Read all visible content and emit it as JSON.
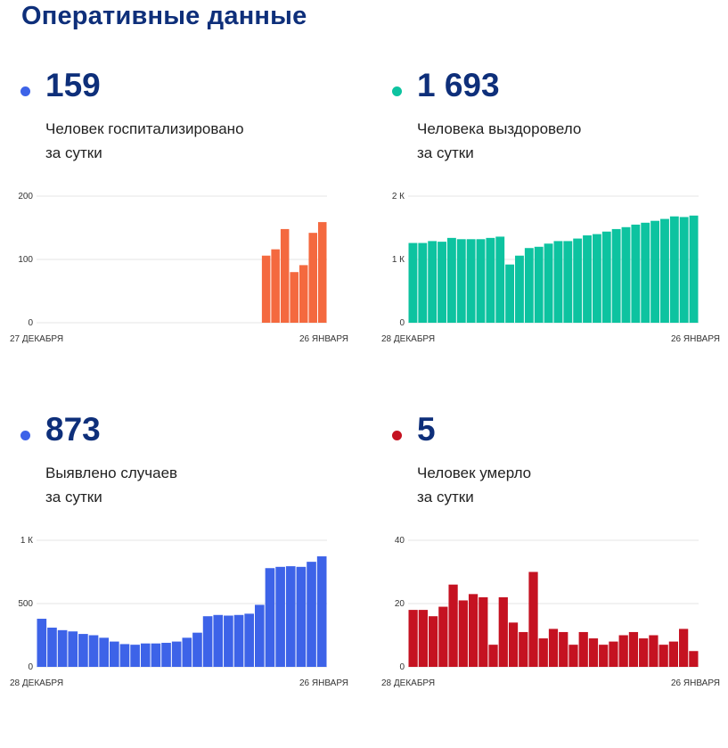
{
  "page_title": "Оперативные данные",
  "colors": {
    "title": "#0e2f7a",
    "hospitalized": "#f4693f",
    "recovered": "#0dc3a0",
    "cases": "#3d63e8",
    "deaths": "#c51221",
    "grid": "#e6e6e6"
  },
  "panels": {
    "hospitalized": {
      "number": "159",
      "line1": "Человек госпитализировано",
      "line2": "за сутки"
    },
    "recovered": {
      "number": "1 693",
      "line1": "Человека выздоровело",
      "line2": "за сутки"
    },
    "cases": {
      "number": "873",
      "line1": "Выявлено случаев",
      "line2": "за сутки"
    },
    "deaths": {
      "number": "5",
      "line1": "Человек умерло",
      "line2": "за сутки"
    }
  },
  "chart_data": [
    {
      "type": "bar",
      "id": "hospitalized",
      "x_start_label": "27 ДЕКАБРЯ",
      "x_end_label": "26 ЯНВАРЯ",
      "ylim": [
        0,
        200
      ],
      "yticks": [
        0,
        100,
        200
      ],
      "ytick_labels": [
        "0",
        "100",
        "200"
      ],
      "grid": true,
      "values": [
        null,
        null,
        null,
        null,
        null,
        null,
        null,
        null,
        null,
        null,
        null,
        null,
        null,
        null,
        null,
        null,
        null,
        null,
        null,
        null,
        null,
        null,
        null,
        null,
        106,
        116,
        148,
        80,
        91,
        142,
        159
      ]
    },
    {
      "type": "bar",
      "id": "recovered",
      "x_start_label": "28 ДЕКАБРЯ",
      "x_end_label": "26 ЯНВАРЯ",
      "ylim": [
        0,
        2000
      ],
      "yticks": [
        0,
        1000,
        2000
      ],
      "ytick_labels": [
        "0",
        "1 К",
        "2 К"
      ],
      "grid": true,
      "values": [
        1260,
        1260,
        1290,
        1280,
        1340,
        1320,
        1320,
        1320,
        1340,
        1360,
        920,
        1060,
        1180,
        1200,
        1250,
        1290,
        1290,
        1330,
        1380,
        1400,
        1440,
        1480,
        1510,
        1550,
        1580,
        1610,
        1640,
        1680,
        1670,
        1693
      ]
    },
    {
      "type": "bar",
      "id": "cases",
      "x_start_label": "28 ДЕКАБРЯ",
      "x_end_label": "26 ЯНВАРЯ",
      "ylim": [
        0,
        1000
      ],
      "yticks": [
        0,
        500,
        1000
      ],
      "ytick_labels": [
        "0",
        "500",
        "1 К"
      ],
      "grid": true,
      "values": [
        380,
        310,
        290,
        280,
        260,
        250,
        230,
        200,
        180,
        175,
        185,
        185,
        190,
        200,
        230,
        270,
        400,
        410,
        405,
        410,
        420,
        490,
        780,
        790,
        795,
        790,
        830,
        873
      ]
    },
    {
      "type": "bar",
      "id": "deaths",
      "x_start_label": "28 ДЕКАБРЯ",
      "x_end_label": "26 ЯНВАРЯ",
      "ylim": [
        0,
        40
      ],
      "yticks": [
        0,
        20,
        40
      ],
      "ytick_labels": [
        "0",
        "20",
        "40"
      ],
      "grid": true,
      "values": [
        18,
        18,
        16,
        19,
        26,
        21,
        23,
        22,
        7,
        22,
        14,
        11,
        30,
        9,
        12,
        11,
        7,
        11,
        9,
        7,
        8,
        10,
        11,
        9,
        10,
        7,
        8,
        12,
        5
      ]
    }
  ]
}
